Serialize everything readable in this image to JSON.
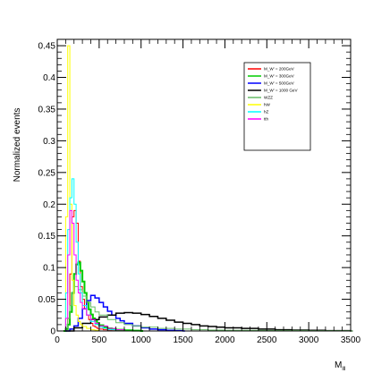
{
  "chart_data": {
    "type": "line",
    "style": "step-histogram",
    "ylabel": "Normalized events",
    "xlabel": "M_lll",
    "xlabel_main": "M",
    "xlabel_sub": "lll",
    "xlim": [
      0,
      3500
    ],
    "ylim": [
      0,
      0.46
    ],
    "x_ticks": [
      0,
      500,
      1000,
      1500,
      2000,
      2500,
      3000,
      3500
    ],
    "x_tick_labels": [
      "0",
      "500",
      "1000",
      "1500",
      "2000",
      "2500",
      "3000",
      "3500"
    ],
    "y_ticks": [
      0,
      0.05,
      0.1,
      0.15,
      0.2,
      0.25,
      0.3,
      0.35,
      0.4,
      0.45
    ],
    "y_tick_labels": [
      "0",
      "0.05",
      "0.1",
      "0.15",
      "0.2",
      "0.25",
      "0.3",
      "0.35",
      "0.4",
      "0.45"
    ],
    "legend_position": "top-right",
    "legend": [
      {
        "label": "M_W' = 200GeV",
        "color": "#ff0000"
      },
      {
        "label": "M_W' = 300GeV",
        "color": "#00cc00"
      },
      {
        "label": "M_W' = 500GeV",
        "color": "#0000ff"
      },
      {
        "label": "M_W' = 1000 GeV",
        "color": "#000000"
      },
      {
        "label": "WZZ",
        "color": "#66bb66"
      },
      {
        "label": "hW",
        "color": "#ffff00"
      },
      {
        "label": "hZ",
        "color": "#00ffff"
      },
      {
        "label": "tth",
        "color": "#ff00ff"
      }
    ],
    "bin_width": 25,
    "series": [
      {
        "name": "M_W' = 200GeV",
        "color": "#ff0000",
        "stroke_width": 1,
        "x": [
          75,
          100,
          125,
          150,
          175,
          200,
          225,
          250,
          275,
          300,
          325,
          350,
          375,
          400,
          425,
          450,
          475,
          500,
          550,
          600,
          650,
          700
        ],
        "values": [
          0.0,
          0.005,
          0.02,
          0.09,
          0.18,
          0.19,
          0.17,
          0.11,
          0.07,
          0.05,
          0.035,
          0.025,
          0.018,
          0.012,
          0.008,
          0.006,
          0.004,
          0.003,
          0.002,
          0.001,
          0.0005,
          0.0
        ]
      },
      {
        "name": "M_W' = 300GeV",
        "color": "#00cc00",
        "stroke_width": 2,
        "x": [
          75,
          100,
          125,
          150,
          175,
          200,
          225,
          250,
          275,
          300,
          325,
          350,
          375,
          400,
          425,
          450,
          475,
          500,
          550,
          600,
          650,
          700,
          800,
          900,
          1000
        ],
        "values": [
          0.0,
          0.003,
          0.01,
          0.03,
          0.06,
          0.09,
          0.105,
          0.108,
          0.095,
          0.078,
          0.06,
          0.045,
          0.034,
          0.026,
          0.02,
          0.016,
          0.012,
          0.009,
          0.006,
          0.004,
          0.003,
          0.002,
          0.001,
          0.0005,
          0.0
        ]
      },
      {
        "name": "M_W' = 500GeV",
        "color": "#0000ff",
        "stroke_width": 1.5,
        "x": [
          100,
          150,
          200,
          250,
          300,
          350,
          400,
          450,
          500,
          550,
          600,
          650,
          700,
          750,
          800,
          900,
          1000,
          1100,
          1200,
          1300,
          1400,
          1500
        ],
        "values": [
          0.0,
          0.003,
          0.008,
          0.02,
          0.035,
          0.048,
          0.056,
          0.052,
          0.045,
          0.038,
          0.031,
          0.025,
          0.02,
          0.016,
          0.012,
          0.008,
          0.005,
          0.003,
          0.002,
          0.001,
          0.0005,
          0.0
        ]
      },
      {
        "name": "M_W' = 1000 GeV",
        "color": "#000000",
        "stroke_width": 1.5,
        "x": [
          100,
          200,
          300,
          400,
          500,
          600,
          700,
          800,
          900,
          1000,
          1100,
          1200,
          1300,
          1400,
          1500,
          1600,
          1700,
          1800,
          1900,
          2000,
          2200,
          2400,
          2600,
          2800,
          3000,
          3200,
          3500
        ],
        "values": [
          0.0,
          0.005,
          0.012,
          0.018,
          0.022,
          0.025,
          0.028,
          0.029,
          0.028,
          0.026,
          0.023,
          0.02,
          0.017,
          0.014,
          0.012,
          0.01,
          0.008,
          0.007,
          0.006,
          0.005,
          0.004,
          0.003,
          0.002,
          0.0015,
          0.001,
          0.0005,
          0.0
        ]
      },
      {
        "name": "WZZ",
        "color": "#66bb66",
        "stroke_width": 1,
        "x": [
          75,
          100,
          125,
          150,
          175,
          200,
          250,
          300,
          350,
          400,
          450,
          500,
          600,
          700,
          800,
          900,
          1000,
          1200,
          1400,
          1600,
          1800,
          2000,
          2500,
          3000,
          3500
        ],
        "values": [
          0.0,
          0.005,
          0.02,
          0.04,
          0.06,
          0.07,
          0.065,
          0.055,
          0.045,
          0.038,
          0.03,
          0.025,
          0.018,
          0.013,
          0.01,
          0.008,
          0.006,
          0.004,
          0.003,
          0.002,
          0.0015,
          0.001,
          0.0008,
          0.0005,
          0.0
        ]
      },
      {
        "name": "hW",
        "color": "#ffff00",
        "stroke_width": 1,
        "x": [
          75,
          100,
          125,
          150,
          175,
          200,
          225,
          250,
          275,
          300,
          350,
          400,
          450,
          500
        ],
        "values": [
          0.0,
          0.18,
          0.45,
          0.2,
          0.08,
          0.04,
          0.025,
          0.015,
          0.01,
          0.007,
          0.004,
          0.002,
          0.001,
          0.0
        ]
      },
      {
        "name": "hZ",
        "color": "#00ffff",
        "stroke_width": 1,
        "x": [
          75,
          100,
          125,
          150,
          175,
          200,
          225,
          250,
          275,
          300,
          350,
          400,
          450,
          500,
          550,
          600,
          700
        ],
        "values": [
          0.0,
          0.06,
          0.16,
          0.21,
          0.24,
          0.2,
          0.14,
          0.09,
          0.06,
          0.04,
          0.025,
          0.015,
          0.01,
          0.006,
          0.004,
          0.002,
          0.0
        ]
      },
      {
        "name": "tth",
        "color": "#ff00ff",
        "stroke_width": 1,
        "x": [
          75,
          100,
          125,
          150,
          175,
          200,
          225,
          250,
          275,
          300,
          350,
          400,
          450,
          500,
          600,
          700,
          800
        ],
        "values": [
          0.0,
          0.02,
          0.12,
          0.19,
          0.17,
          0.12,
          0.08,
          0.06,
          0.045,
          0.035,
          0.025,
          0.018,
          0.012,
          0.008,
          0.004,
          0.002,
          0.0
        ]
      }
    ]
  }
}
